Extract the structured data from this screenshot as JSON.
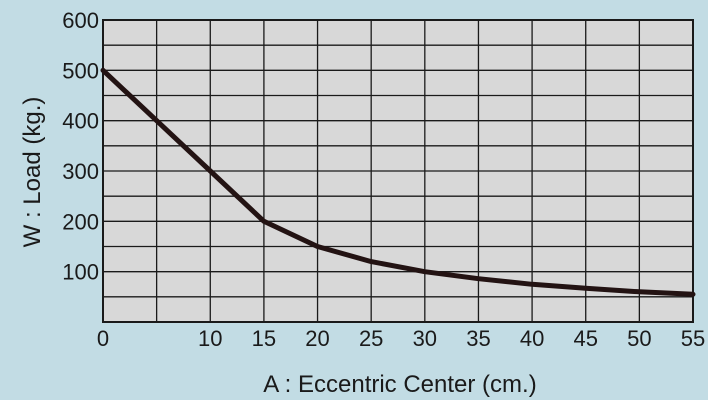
{
  "chart_data": {
    "type": "line",
    "xlabel": "A : Eccentric Center (cm.)",
    "ylabel": "W : Load (kg.)",
    "xlim": [
      0,
      55
    ],
    "ylim": [
      0,
      600
    ],
    "x_ticks": [
      "0",
      "10",
      "15",
      "20",
      "25",
      "30",
      "35",
      "40",
      "45",
      "50",
      "55"
    ],
    "y_ticks": [
      "100",
      "200",
      "300",
      "400",
      "500",
      "600"
    ],
    "grid": true,
    "series": [
      {
        "x": [
          0,
          10,
          15,
          20,
          25,
          30,
          35,
          40,
          45,
          50,
          55
        ],
        "y": [
          500,
          300,
          200,
          150,
          120,
          100,
          86,
          75,
          67,
          60,
          55
        ]
      }
    ],
    "colors": {
      "background": "#c2dce4",
      "plot_area": "#d8d8d8",
      "line": "#231313",
      "grid": "#1a1a1a"
    }
  }
}
